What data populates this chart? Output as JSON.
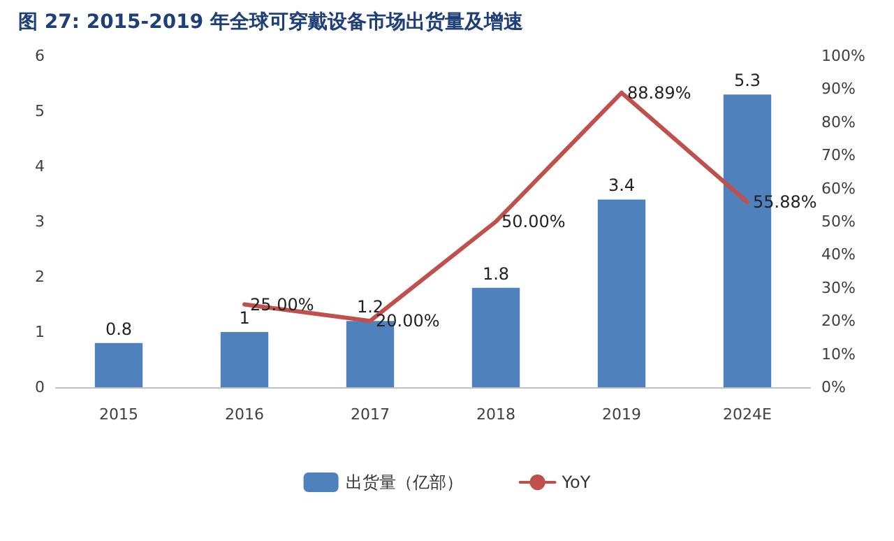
{
  "chart_data": {
    "type": "bar",
    "title": "图 27: 2015-2019 年全球可穿戴设备市场出货量及增速",
    "categories": [
      "2015",
      "2016",
      "2017",
      "2018",
      "2019",
      "2024E"
    ],
    "series": [
      {
        "name": "出货量（亿部）",
        "color": "#4f81bd",
        "values": [
          0.8,
          1,
          1.2,
          1.8,
          3.4,
          5.3
        ],
        "value_labels": [
          "0.8",
          "1",
          "1.2",
          "1.8",
          "3.4",
          "5.3"
        ]
      },
      {
        "name": "YoY",
        "type": "line",
        "axis": "y2",
        "color": "#c0504d",
        "values": [
          null,
          25,
          20,
          50,
          88.89,
          55.88
        ],
        "value_labels": [
          null,
          "25.00%",
          "20.00%",
          "50.00%",
          "88.89%",
          "55.88%"
        ]
      }
    ],
    "ylim": [
      0,
      6
    ],
    "yticks": [
      0,
      1,
      2,
      3,
      4,
      5,
      6
    ],
    "y2lim": [
      0,
      100
    ],
    "y2ticks": [
      {
        "value": 0,
        "label": "0%"
      },
      {
        "value": 10,
        "label": "10%"
      },
      {
        "value": 20,
        "label": "20%"
      },
      {
        "value": 30,
        "label": "30%"
      },
      {
        "value": 40,
        "label": "40%"
      },
      {
        "value": 50,
        "label": "50%"
      },
      {
        "value": 60,
        "label": "60%"
      },
      {
        "value": 70,
        "label": "70%"
      },
      {
        "value": 80,
        "label": "80%"
      },
      {
        "value": 90,
        "label": "90%"
      },
      {
        "value": 100,
        "label": "100%"
      }
    ],
    "grid": false,
    "legend": "bottom",
    "marker": "none",
    "line_style": "solid"
  }
}
